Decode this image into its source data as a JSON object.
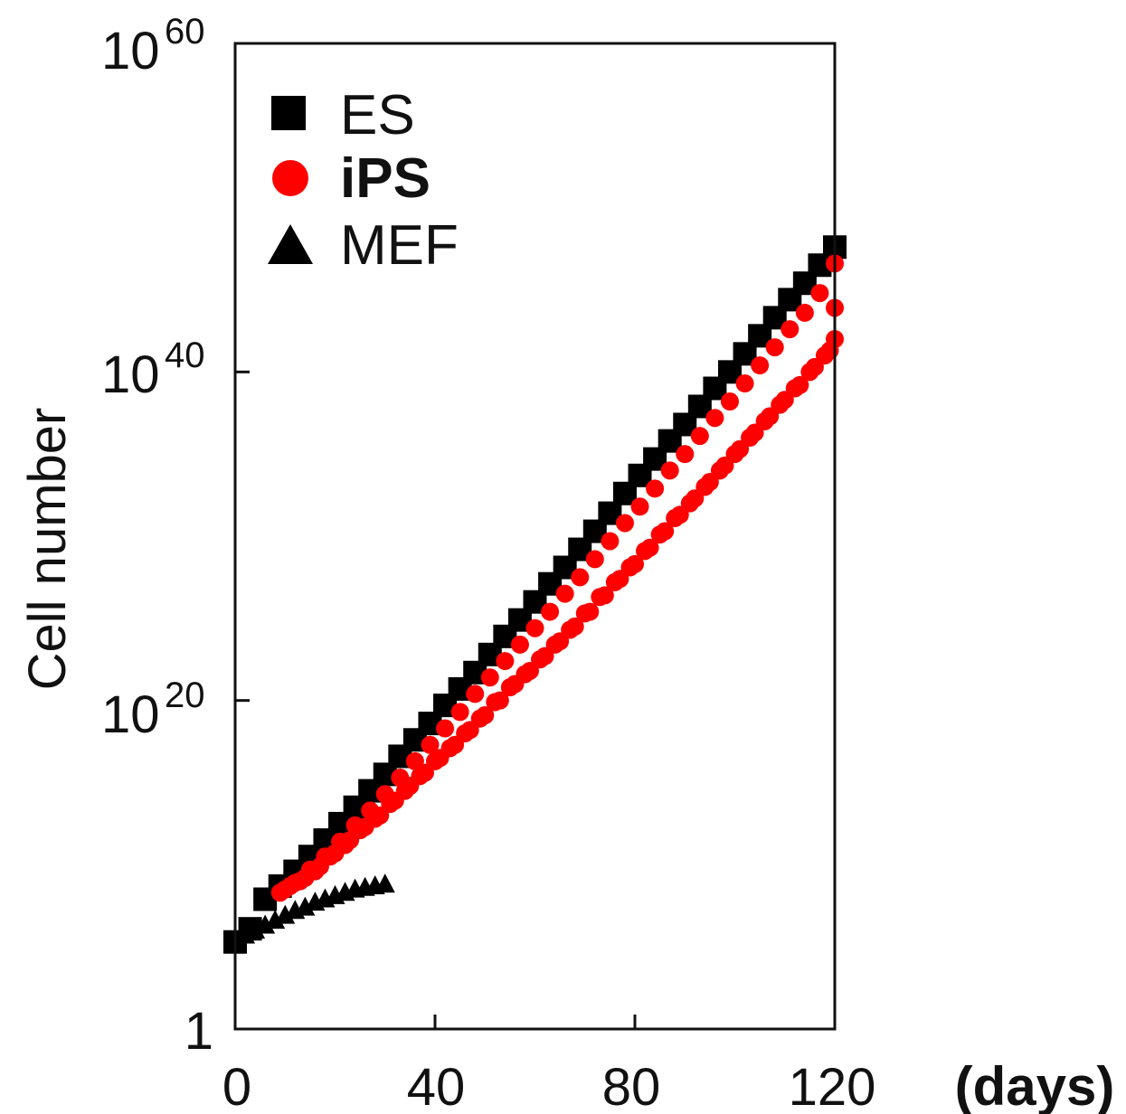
{
  "chart_data": {
    "type": "scatter",
    "xlabel": "(days)",
    "ylabel": "Cell number",
    "y_scale": "log10",
    "xlim": [
      0,
      120
    ],
    "ylim_exponent": [
      0,
      60
    ],
    "x_ticks": [
      "0",
      "40",
      "80",
      "120"
    ],
    "y_ticks": [
      {
        "base": "1",
        "exp": ""
      },
      {
        "base": "10",
        "exp": "20"
      },
      {
        "base": "10",
        "exp": "40"
      },
      {
        "base": "10",
        "exp": "60"
      }
    ],
    "legend": {
      "position": "top-left"
    },
    "series": [
      {
        "name": "ES",
        "marker": "square",
        "color": "#000000",
        "bold": false,
        "points": [
          [
            0,
            5.3
          ],
          [
            3,
            6.1
          ],
          [
            6,
            7.9
          ],
          [
            9,
            8.7
          ],
          [
            12,
            9.6
          ],
          [
            15,
            10.5
          ],
          [
            18,
            11.5
          ],
          [
            21,
            12.5
          ],
          [
            24,
            13.5
          ],
          [
            27,
            14.5
          ],
          [
            30,
            15.5
          ],
          [
            33,
            16.6
          ],
          [
            36,
            17.6
          ],
          [
            39,
            18.6
          ],
          [
            42,
            19.7
          ],
          [
            45,
            20.7
          ],
          [
            48,
            21.7
          ],
          [
            51,
            22.8
          ],
          [
            54,
            23.9
          ],
          [
            57,
            24.9
          ],
          [
            60,
            26.0
          ],
          [
            63,
            27.1
          ],
          [
            66,
            28.1
          ],
          [
            69,
            29.2
          ],
          [
            72,
            30.3
          ],
          [
            75,
            31.4
          ],
          [
            78,
            32.6
          ],
          [
            81,
            33.7
          ],
          [
            84,
            34.7
          ],
          [
            87,
            35.8
          ],
          [
            90,
            36.8
          ],
          [
            93,
            37.9
          ],
          [
            96,
            39.0
          ],
          [
            99,
            40.0
          ],
          [
            102,
            41.1
          ],
          [
            105,
            42.2
          ],
          [
            108,
            43.3
          ],
          [
            111,
            44.4
          ],
          [
            114,
            45.4
          ],
          [
            117,
            46.5
          ],
          [
            120,
            47.6
          ]
        ]
      },
      {
        "name": "iPS",
        "marker": "circle",
        "color": "#ff0000",
        "bold": true,
        "points": [
          [
            9,
            8.3
          ],
          [
            12,
            8.9
          ],
          [
            15,
            9.7
          ],
          [
            18,
            10.5
          ],
          [
            21,
            11.4
          ],
          [
            24,
            12.4
          ],
          [
            27,
            13.3
          ],
          [
            30,
            14.3
          ],
          [
            33,
            15.3
          ],
          [
            36,
            16.3
          ],
          [
            39,
            17.3
          ],
          [
            42,
            18.3
          ],
          [
            45,
            19.3
          ],
          [
            48,
            20.4
          ],
          [
            51,
            21.4
          ],
          [
            54,
            22.4
          ],
          [
            57,
            23.4
          ],
          [
            60,
            24.4
          ],
          [
            63,
            25.4
          ],
          [
            66,
            26.5
          ],
          [
            69,
            27.5
          ],
          [
            72,
            28.6
          ],
          [
            75,
            29.7
          ],
          [
            78,
            30.8
          ],
          [
            81,
            31.8
          ],
          [
            84,
            32.9
          ],
          [
            87,
            34.0
          ],
          [
            90,
            35.0
          ],
          [
            93,
            36.1
          ],
          [
            96,
            37.2
          ],
          [
            99,
            38.2
          ],
          [
            102,
            39.3
          ],
          [
            105,
            40.4
          ],
          [
            108,
            41.5
          ],
          [
            111,
            42.6
          ],
          [
            114,
            43.6
          ],
          [
            117,
            44.8
          ],
          [
            120,
            46.6
          ],
          [
            10,
            8.5
          ],
          [
            13,
            9.0
          ],
          [
            16,
            9.6
          ],
          [
            19,
            10.5
          ],
          [
            22,
            11.2
          ],
          [
            25,
            12.1
          ],
          [
            28,
            12.8
          ],
          [
            31,
            13.7
          ],
          [
            34,
            14.5
          ],
          [
            37,
            15.4
          ],
          [
            40,
            16.3
          ],
          [
            43,
            17.1
          ],
          [
            46,
            18.0
          ],
          [
            49,
            18.9
          ],
          [
            52,
            19.9
          ],
          [
            55,
            20.8
          ],
          [
            58,
            21.6
          ],
          [
            61,
            22.5
          ],
          [
            64,
            23.4
          ],
          [
            67,
            24.3
          ],
          [
            70,
            25.3
          ],
          [
            73,
            26.3
          ],
          [
            76,
            27.2
          ],
          [
            79,
            28.1
          ],
          [
            82,
            29.1
          ],
          [
            85,
            30.1
          ],
          [
            88,
            31.1
          ],
          [
            91,
            32.0
          ],
          [
            94,
            33.0
          ],
          [
            97,
            34.0
          ],
          [
            100,
            35.0
          ],
          [
            103,
            36.0
          ],
          [
            106,
            37.0
          ],
          [
            109,
            38.0
          ],
          [
            112,
            39.0
          ],
          [
            115,
            40.0
          ],
          [
            118,
            41.0
          ],
          [
            120,
            43.9
          ],
          [
            11,
            8.7
          ],
          [
            14,
            9.2
          ],
          [
            17,
            9.9
          ],
          [
            20,
            10.7
          ],
          [
            23,
            11.5
          ],
          [
            26,
            12.3
          ],
          [
            29,
            13.0
          ],
          [
            32,
            13.9
          ],
          [
            35,
            14.8
          ],
          [
            38,
            15.6
          ],
          [
            41,
            16.5
          ],
          [
            44,
            17.3
          ],
          [
            47,
            18.2
          ],
          [
            50,
            19.1
          ],
          [
            53,
            20.0
          ],
          [
            56,
            21.0
          ],
          [
            59,
            21.8
          ],
          [
            62,
            22.7
          ],
          [
            65,
            23.6
          ],
          [
            68,
            24.5
          ],
          [
            71,
            25.4
          ],
          [
            74,
            26.4
          ],
          [
            77,
            27.4
          ],
          [
            80,
            28.3
          ],
          [
            83,
            29.3
          ],
          [
            86,
            30.3
          ],
          [
            89,
            31.3
          ],
          [
            92,
            32.3
          ],
          [
            95,
            33.3
          ],
          [
            98,
            34.3
          ],
          [
            101,
            35.3
          ],
          [
            104,
            36.3
          ],
          [
            107,
            37.3
          ],
          [
            110,
            38.3
          ],
          [
            113,
            39.2
          ],
          [
            116,
            40.3
          ],
          [
            119,
            41.3
          ],
          [
            120,
            42.0
          ]
        ]
      },
      {
        "name": "MEF",
        "marker": "triangle",
        "color": "#000000",
        "bold": false,
        "points": [
          [
            0,
            5.4
          ],
          [
            2,
            5.7
          ],
          [
            4,
            6.0
          ],
          [
            6,
            6.3
          ],
          [
            8,
            6.6
          ],
          [
            10,
            6.9
          ],
          [
            12,
            7.2
          ],
          [
            14,
            7.4
          ],
          [
            16,
            7.7
          ],
          [
            18,
            7.9
          ],
          [
            20,
            8.1
          ],
          [
            22,
            8.3
          ],
          [
            24,
            8.5
          ],
          [
            26,
            8.6
          ],
          [
            28,
            8.7
          ],
          [
            30,
            8.8
          ]
        ]
      }
    ]
  }
}
